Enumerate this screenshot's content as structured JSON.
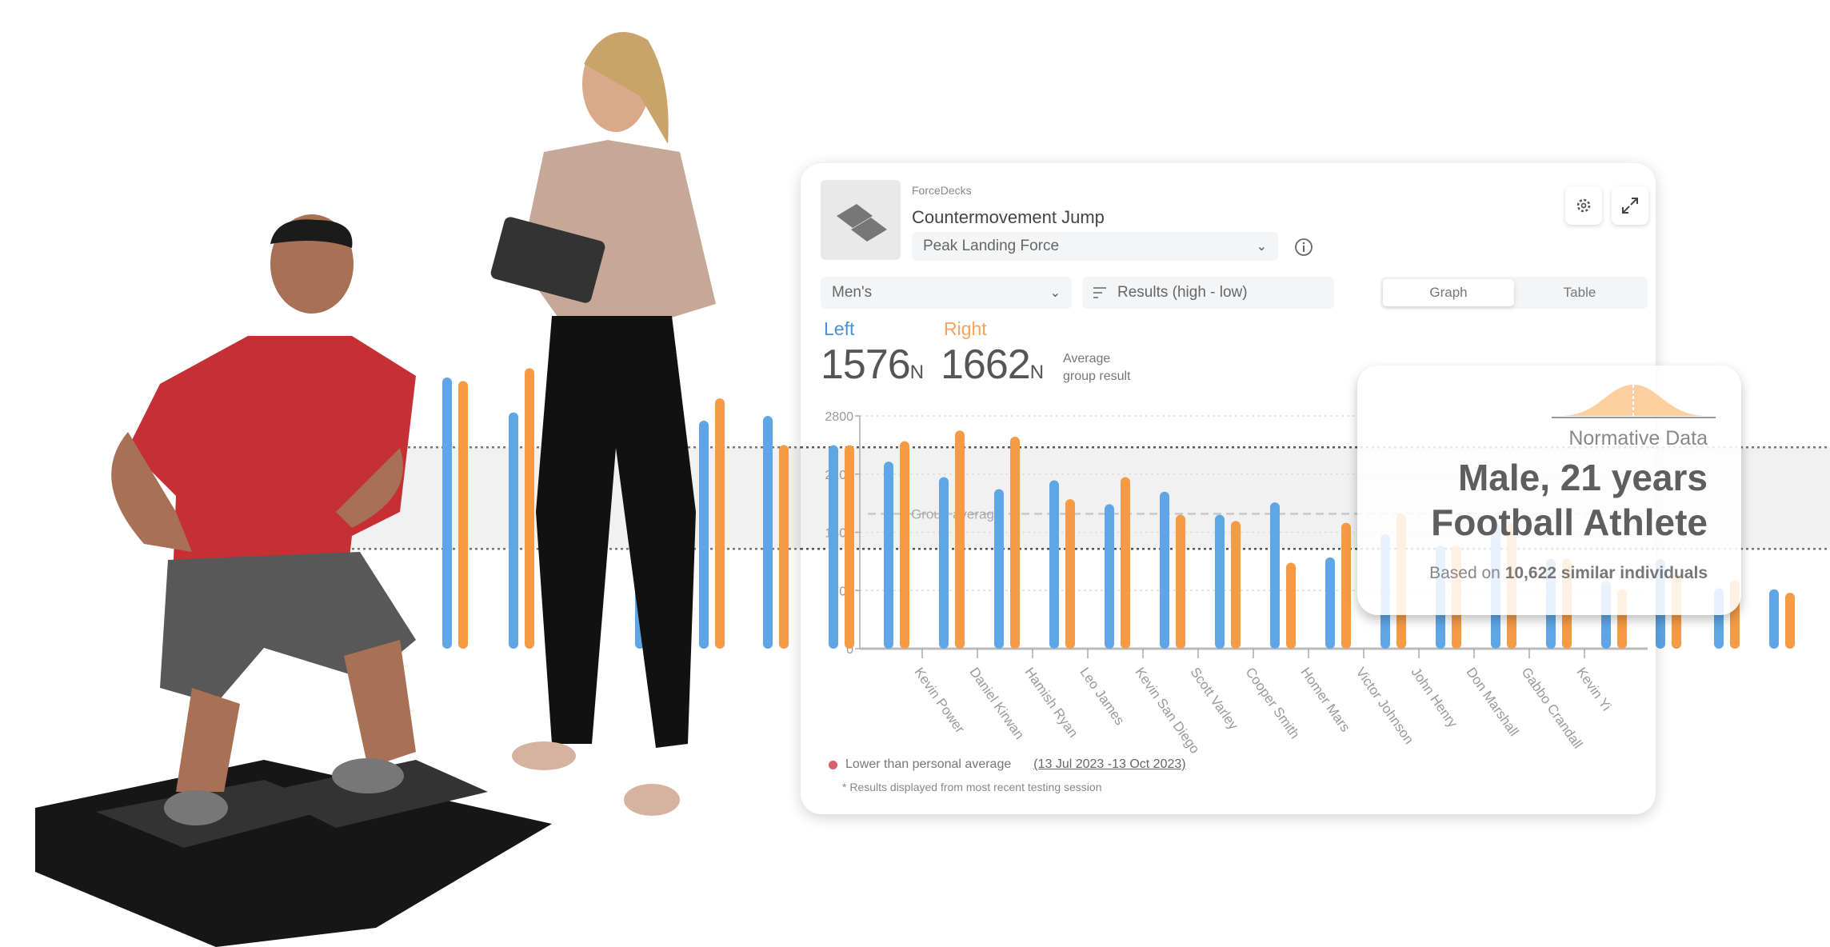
{
  "header": {
    "brand": "ForceDecks",
    "title": "Countermovement Jump",
    "metric": "Peak Landing Force"
  },
  "filters": {
    "group": "Men's",
    "sort": "Results (high - low)",
    "view_options": [
      "Graph",
      "Table"
    ],
    "active_view": "Graph"
  },
  "summary": {
    "left_label": "Left",
    "right_label": "Right",
    "left_value": "1576",
    "right_value": "1662",
    "unit": "N",
    "avg_line1": "Average",
    "avg_line2": "group result"
  },
  "colors": {
    "left": "#5ea6e6",
    "right": "#f59a45",
    "band": "#f1f1f1",
    "lower_dot": "#d9606e"
  },
  "icons": {
    "settings": "gear-icon",
    "expand": "expand-icon",
    "info": "info-icon",
    "sort": "sort-icon",
    "dropdown": "chevron-down-icon"
  },
  "chart_data": {
    "type": "bar",
    "ylim": [
      0,
      2800
    ],
    "yticks": [
      "2800",
      "2100",
      "1400",
      "700",
      "0"
    ],
    "group_average_label": "Group average",
    "group_average": 1622,
    "band": [
      1200,
      2422
    ],
    "categories": [
      "",
      "Kevin Power",
      "Daniel Kirwan",
      "Hamish Ryan",
      "Leo James",
      "Kevin San Diego",
      "Scott Varley",
      "Cooper Smith",
      "Homer Mars",
      "Victor Johnson",
      "John Henry",
      "Don Marshall",
      "Gabbo Crandall",
      "Kevin Yi",
      "",
      ""
    ],
    "series": [
      {
        "name": "Left",
        "values": [
          2448,
          2250,
          2064,
          1920,
          2026,
          1738,
          1888,
          1610,
          1760,
          1098,
          1376,
          1238,
          1504,
          1082,
          816,
          1082
        ]
      },
      {
        "name": "Right",
        "values": [
          2448,
          2496,
          2624,
          2550,
          1798,
          2064,
          1610,
          1536,
          1034,
          1514,
          1622,
          1238,
          1504,
          1082,
          714,
          1082
        ]
      }
    ],
    "background_series": {
      "left": [
        3262,
        2842,
        2700,
        2744,
        2800,
        1078,
        728,
        714
      ],
      "right": [
        3220,
        3374,
        3000,
        3010,
        2450,
        896,
        826,
        672
      ]
    }
  },
  "legend": {
    "lower_label": "Lower than personal average",
    "date_range": "(13 Jul 2023 -13 Oct 2023)",
    "footnote": "* Results displayed from most recent testing session"
  },
  "normative": {
    "label": "Normative Data",
    "line1": "Male, 21 years",
    "line2": "Football Athlete",
    "based_prefix": "Based on",
    "count": "10,622 similar individuals"
  }
}
